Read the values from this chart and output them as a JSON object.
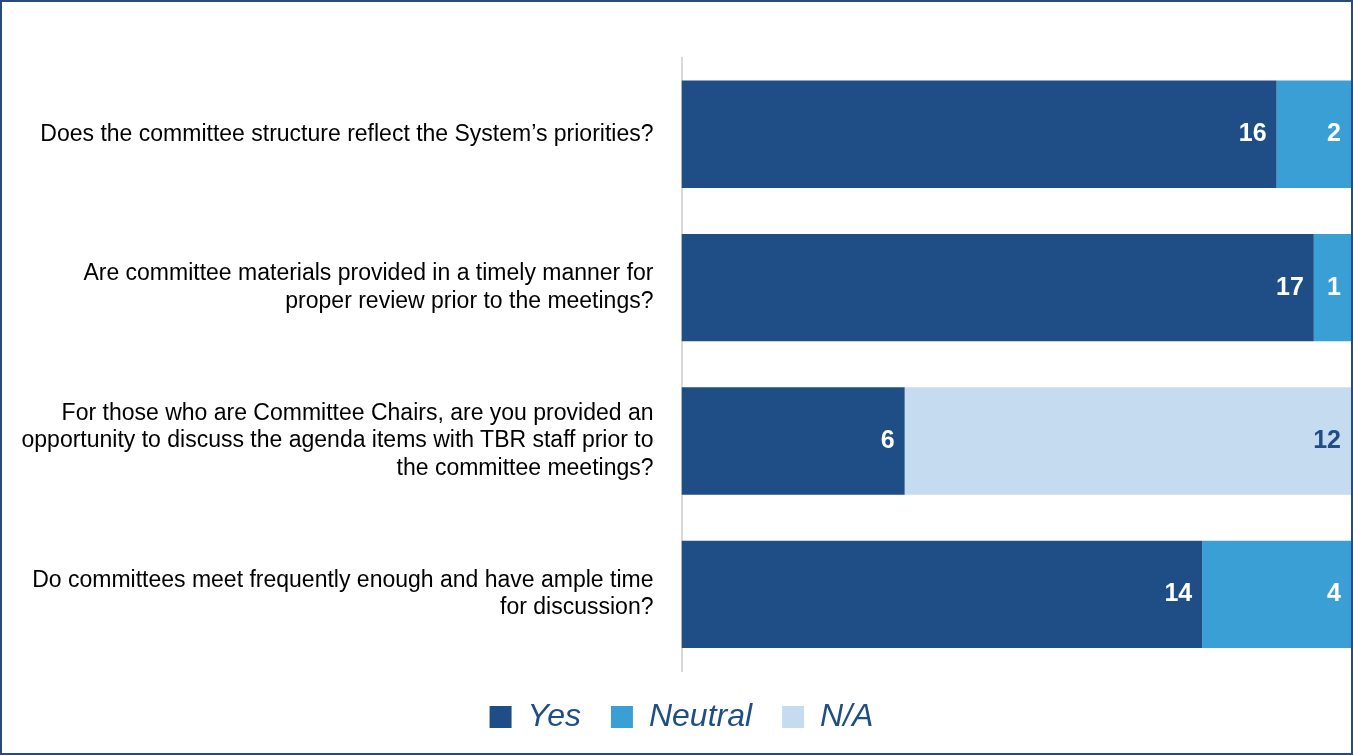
{
  "chart_data": {
    "type": "bar",
    "orientation": "horizontal",
    "stacked": true,
    "categories": [
      "Does the committee structure reflect the System’s priorities?",
      "Are committee materials provided in a timely manner for proper review prior to the meetings?",
      "For those who are Committee Chairs, are you provided an opportunity to discuss the agenda items with TBR staff prior to the committee meetings?",
      "Do committees meet frequently enough and have ample time for discussion?"
    ],
    "series": [
      {
        "name": "Yes",
        "color": "#1f4e87",
        "values": [
          16,
          17,
          6,
          14
        ]
      },
      {
        "name": "Neutral",
        "color": "#3a9fd5",
        "values": [
          2,
          1,
          null,
          4
        ]
      },
      {
        "name": "N/A",
        "color": "#c5dcf0",
        "values": [
          null,
          null,
          12,
          null
        ]
      }
    ],
    "xlim": [
      0,
      18
    ],
    "tick_labels": "y",
    "grid": false,
    "legend": "bottom",
    "data_labels": true
  }
}
